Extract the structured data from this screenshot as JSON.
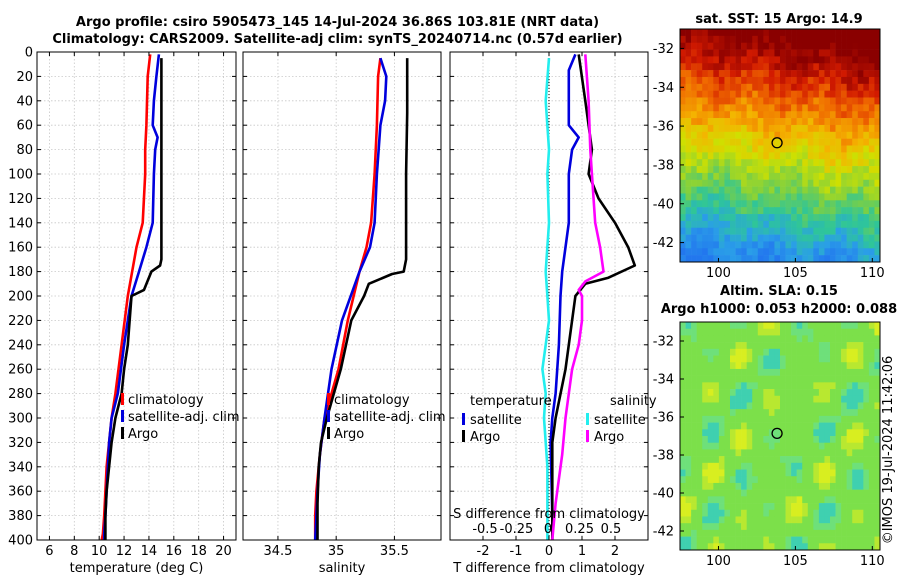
{
  "title_line1": "Argo profile: csiro 5905473_145 14-Jul-2024 36.86S 103.81E (NRT data)",
  "title_line2": "Climatology: CARS2009. Satellite-adj clim: synTS_20240714.nc (0.57d earlier)",
  "timestamp": "©IMOS 19-Jul-2024 11:42:06",
  "colors": {
    "clim": "#ff0000",
    "sat": "#0000dd",
    "argo": "#000000",
    "cyan": "#22eeee",
    "magenta": "#ff00ff"
  },
  "chart_data": [
    {
      "id": "temperature",
      "type": "line",
      "xlabel": "temperature (deg C)",
      "ylabel": "",
      "xlim": [
        5,
        21
      ],
      "ylim": [
        400,
        0
      ],
      "xticks": [
        6,
        8,
        10,
        12,
        14,
        16,
        18,
        20
      ],
      "xtick_labels": [
        "6",
        "8",
        "10",
        "12",
        "14",
        "16",
        "18",
        "20"
      ],
      "yticks": [
        0,
        20,
        40,
        60,
        80,
        100,
        120,
        140,
        160,
        180,
        200,
        220,
        240,
        260,
        280,
        300,
        320,
        340,
        360,
        380,
        400
      ],
      "ytick_labels": [
        "0",
        "20",
        "40",
        "60",
        "80",
        "100",
        "120",
        "140",
        "160",
        "180",
        "200",
        "220",
        "240",
        "260",
        "280",
        "300",
        "320",
        "340",
        "360",
        "380",
        "400"
      ],
      "legend": [
        "climatology",
        "satellite-adj. clim",
        "Argo"
      ],
      "series": [
        {
          "name": "climatology",
          "color": "#ff0000",
          "x": [
            14.1,
            13.9,
            13.8,
            13.7,
            13.7,
            13.5,
            13.0,
            12.3,
            11.8,
            11.3,
            11.0,
            10.8,
            10.6,
            10.5,
            10.4,
            10.3,
            10.2
          ],
          "y": [
            2,
            20,
            60,
            80,
            100,
            140,
            160,
            200,
            240,
            280,
            300,
            320,
            340,
            360,
            380,
            395,
            400
          ]
        },
        {
          "name": "satellite-adj. clim",
          "color": "#0000dd",
          "x": [
            14.8,
            14.6,
            14.4,
            14.3,
            14.7,
            14.5,
            14.4,
            14.3,
            13.8,
            13.2,
            12.6,
            12.0,
            11.5,
            11.0,
            10.8,
            10.7,
            10.6,
            10.5,
            10.4,
            10.4
          ],
          "y": [
            2,
            20,
            40,
            60,
            70,
            80,
            100,
            140,
            160,
            180,
            200,
            240,
            280,
            300,
            320,
            340,
            360,
            380,
            395,
            400
          ]
        },
        {
          "name": "Argo",
          "color": "#000000",
          "x": [
            15.0,
            15.0,
            15.0,
            15.0,
            15.0,
            14.9,
            14.2,
            14.0,
            13.6,
            12.6,
            12.3,
            12.0,
            11.8,
            11.3,
            11.0,
            10.8,
            10.6,
            10.5,
            10.5
          ],
          "y": [
            5,
            40,
            100,
            140,
            170,
            175,
            180,
            185,
            195,
            200,
            240,
            260,
            280,
            300,
            320,
            340,
            360,
            380,
            400
          ]
        }
      ]
    },
    {
      "id": "salinity",
      "type": "line",
      "xlabel": "salinity",
      "xlim": [
        34.2,
        35.9
      ],
      "ylim": [
        400,
        0
      ],
      "xticks": [
        34.5,
        35,
        35.5
      ],
      "xtick_labels": [
        "34.5",
        "35",
        "35.5"
      ],
      "yticks": [
        0,
        20,
        40,
        60,
        80,
        100,
        120,
        140,
        160,
        180,
        200,
        220,
        240,
        260,
        280,
        300,
        320,
        340,
        360,
        380,
        400
      ],
      "legend": [
        "climatology",
        "satellite-adj. clim",
        "Argo"
      ],
      "series": [
        {
          "name": "climatology",
          "color": "#ff0000",
          "x": [
            35.38,
            35.36,
            35.35,
            35.33,
            35.3,
            35.26,
            35.2,
            35.1,
            35.02,
            34.96,
            34.9,
            34.86,
            34.83,
            34.82,
            34.82
          ],
          "y": [
            5,
            20,
            60,
            100,
            140,
            160,
            180,
            220,
            260,
            280,
            300,
            330,
            360,
            380,
            400
          ]
        },
        {
          "name": "satellite-adj. clim",
          "color": "#0000dd",
          "x": [
            35.38,
            35.43,
            35.42,
            35.38,
            35.35,
            35.33,
            35.29,
            35.2,
            35.05,
            34.96,
            34.9,
            34.86,
            34.84,
            34.83,
            34.82
          ],
          "y": [
            5,
            20,
            40,
            60,
            100,
            140,
            160,
            180,
            220,
            260,
            300,
            330,
            360,
            380,
            400
          ]
        },
        {
          "name": "Argo",
          "color": "#000000",
          "x": [
            35.61,
            35.61,
            35.6,
            35.6,
            35.6,
            35.58,
            35.48,
            35.28,
            35.24,
            35.13,
            35.04,
            34.98,
            34.92,
            34.87,
            34.85,
            34.84,
            34.84
          ],
          "y": [
            5,
            50,
            100,
            140,
            170,
            180,
            182,
            190,
            200,
            220,
            260,
            280,
            300,
            320,
            340,
            370,
            400
          ]
        }
      ]
    },
    {
      "id": "difference",
      "type": "line",
      "xlabel": "T difference from climatology",
      "top_xlabel": "S difference from climatology",
      "xlim": [
        -3,
        3
      ],
      "ylim": [
        400,
        0
      ],
      "xticks": [
        -2,
        -1,
        0,
        1,
        2
      ],
      "xtick_labels": [
        "-2",
        "-1",
        "0",
        "1",
        "2"
      ],
      "top_xtick_values": [
        -0.5,
        -0.25,
        0,
        0.25,
        0.5
      ],
      "top_xtick_labels": [
        "-0.5",
        "-0.25",
        "0",
        "0.25",
        "0.5"
      ],
      "yticks": [
        0,
        20,
        40,
        60,
        80,
        100,
        120,
        140,
        160,
        180,
        200,
        220,
        240,
        260,
        280,
        300,
        320,
        340,
        360,
        380,
        400
      ],
      "legend_left_title": "temperature",
      "legend_right_title": "salinity",
      "legend_left": [
        "satellite",
        "Argo"
      ],
      "legend_right": [
        "satellite",
        "Argo"
      ],
      "series": [
        {
          "name": "S satellite",
          "color": "#22eeee",
          "x": [
            0.0,
            -0.1,
            0.0,
            -0.05,
            0.0,
            -0.1,
            -0.05,
            0.0,
            -0.1,
            -0.2,
            -0.1,
            -0.15,
            -0.1,
            -0.05,
            -0.05,
            -0.05
          ],
          "y": [
            5,
            40,
            80,
            100,
            140,
            180,
            200,
            220,
            240,
            260,
            280,
            300,
            320,
            340,
            380,
            400
          ]
        },
        {
          "name": "T satellite",
          "color": "#0000dd",
          "x": [
            0.8,
            0.6,
            0.6,
            0.6,
            0.9,
            0.7,
            0.6,
            0.6,
            0.5,
            0.4,
            0.35,
            0.3,
            0.2,
            0.1,
            0.05,
            0.1,
            0.1
          ],
          "y": [
            2,
            15,
            40,
            60,
            70,
            80,
            100,
            140,
            160,
            180,
            200,
            240,
            280,
            300,
            320,
            380,
            400
          ]
        },
        {
          "name": "T Argo",
          "color": "#000000",
          "x": [
            0.9,
            1.1,
            1.2,
            1.3,
            1.2,
            1.5,
            2.0,
            2.4,
            2.6,
            1.8,
            1.1,
            0.8,
            0.5,
            0.2,
            0.1,
            0.1,
            0.1,
            0.1
          ],
          "y": [
            2,
            40,
            60,
            80,
            100,
            120,
            140,
            160,
            175,
            185,
            190,
            200,
            260,
            300,
            320,
            340,
            380,
            400
          ]
        },
        {
          "name": "S Argo",
          "color": "#ff00ff",
          "x": [
            1.1,
            1.2,
            1.25,
            1.3,
            1.4,
            1.55,
            1.65,
            1.1,
            0.9,
            1.0,
            1.0,
            0.9,
            0.7,
            0.5,
            0.4,
            0.2,
            0.1
          ],
          "y": [
            2,
            40,
            80,
            100,
            140,
            160,
            180,
            188,
            195,
            200,
            220,
            240,
            260,
            300,
            330,
            370,
            400
          ]
        }
      ]
    },
    {
      "id": "sst_map",
      "type": "heatmap",
      "title": "sat. SST: 15 Argo: 14.9",
      "xlim": [
        97.5,
        110.5
      ],
      "ylim": [
        -43,
        -31
      ],
      "xticks": [
        100,
        105,
        110
      ],
      "xtick_labels": [
        "100",
        "105",
        "110"
      ],
      "yticks": [
        -32,
        -34,
        -36,
        -38,
        -40,
        -42
      ],
      "ytick_labels": [
        "-32",
        "-34",
        "-36",
        "-38",
        "-40",
        "-42"
      ],
      "marker": {
        "lon": 103.81,
        "lat": -36.86
      },
      "gradient": [
        "#8a0000",
        "#d21a00",
        "#f06a00",
        "#f4b400",
        "#cfe000",
        "#7fd040",
        "#2ec59a",
        "#2a9ee8",
        "#2277ee"
      ]
    },
    {
      "id": "sla_map",
      "type": "heatmap",
      "title_line1": "Altim. SLA: 0.15",
      "title_line2": "Argo h1000: 0.053 h2000: 0.088",
      "xlim": [
        97.5,
        110.5
      ],
      "ylim": [
        -43,
        -31
      ],
      "xticks": [
        100,
        105,
        110
      ],
      "xtick_labels": [
        "100",
        "105",
        "110"
      ],
      "yticks": [
        -32,
        -34,
        -36,
        -38,
        -40,
        -42
      ],
      "ytick_labels": [
        "-32",
        "-34",
        "-36",
        "-38",
        "-40",
        "-42"
      ],
      "marker": {
        "lon": 103.81,
        "lat": -36.86
      }
    }
  ]
}
